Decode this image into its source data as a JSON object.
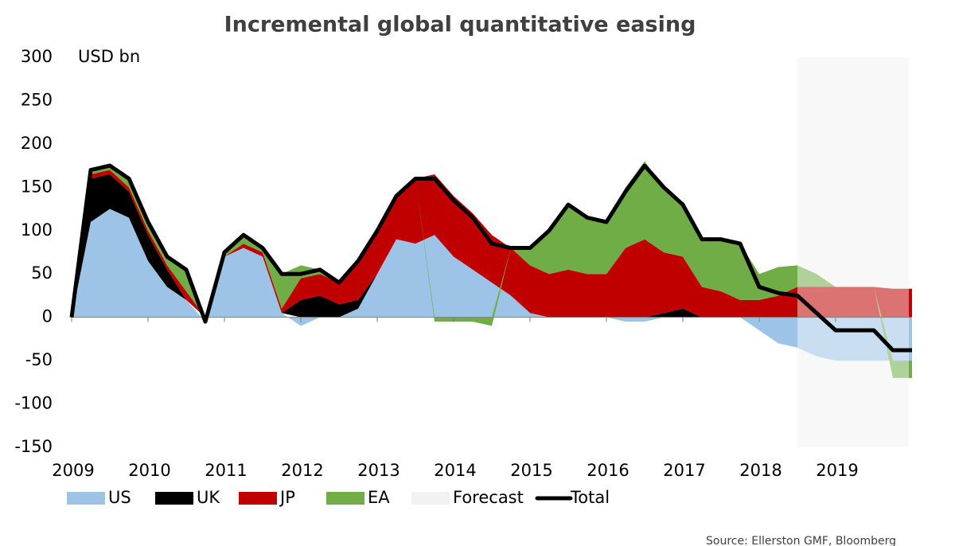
{
  "chart_data": {
    "type": "stacked_area",
    "title": "Incremental global quantitative easing",
    "y_label": "USD bn",
    "source": "Source: Ellerston GMF, Bloomberg",
    "x": [
      2009,
      2009.25,
      2009.5,
      2009.75,
      2010,
      2010.25,
      2010.5,
      2010.75,
      2011,
      2011.25,
      2011.5,
      2011.75,
      2012,
      2012.25,
      2012.5,
      2012.75,
      2013,
      2013.25,
      2013.5,
      2013.75,
      2014,
      2014.25,
      2014.5,
      2014.75,
      2015,
      2015.25,
      2015.5,
      2015.75,
      2016,
      2016.25,
      2016.5,
      2016.75,
      2017,
      2017.25,
      2017.5,
      2017.75,
      2018,
      2018.25,
      2018.5,
      2018.75,
      2019,
      2019.25,
      2019.5,
      2019.75,
      2020
    ],
    "series": [
      {
        "name": "US",
        "color": "#9dc3e6",
        "values": [
          0,
          110,
          125,
          115,
          65,
          35,
          20,
          -5,
          70,
          80,
          70,
          5,
          -10,
          0,
          0,
          10,
          50,
          90,
          85,
          95,
          70,
          55,
          40,
          25,
          5,
          0,
          0,
          0,
          0,
          -5,
          -5,
          0,
          0,
          0,
          0,
          0,
          -15,
          -30,
          -35,
          -45,
          -50,
          -50,
          -50,
          -50,
          -50
        ]
      },
      {
        "name": "UK",
        "color": "#000000",
        "values": [
          0,
          50,
          40,
          30,
          30,
          20,
          0,
          0,
          0,
          0,
          0,
          0,
          20,
          25,
          15,
          10,
          0,
          0,
          0,
          0,
          0,
          0,
          0,
          0,
          0,
          0,
          0,
          0,
          0,
          0,
          0,
          5,
          10,
          0,
          0,
          0,
          0,
          0,
          0,
          0,
          0,
          0,
          0,
          0,
          0
        ]
      },
      {
        "name": "JP",
        "color": "#c00000",
        "values": [
          0,
          5,
          5,
          5,
          5,
          5,
          10,
          0,
          0,
          5,
          5,
          5,
          25,
          25,
          25,
          45,
          50,
          50,
          75,
          70,
          70,
          65,
          55,
          55,
          55,
          50,
          55,
          50,
          50,
          80,
          90,
          70,
          60,
          35,
          30,
          20,
          20,
          25,
          35,
          35,
          35,
          35,
          35,
          33,
          33
        ]
      },
      {
        "name": "EA",
        "color": "#70ad47",
        "values": [
          0,
          5,
          5,
          10,
          10,
          10,
          25,
          0,
          5,
          10,
          5,
          40,
          15,
          5,
          0,
          0,
          0,
          0,
          0,
          -5,
          -5,
          -5,
          -10,
          0,
          20,
          50,
          75,
          65,
          60,
          70,
          90,
          75,
          60,
          55,
          60,
          65,
          30,
          33,
          25,
          15,
          0,
          0,
          0,
          -20,
          -20
        ]
      },
      {
        "name": "Total",
        "color": "#000000",
        "values": [
          0,
          170,
          175,
          160,
          110,
          70,
          55,
          -5,
          75,
          95,
          80,
          50,
          50,
          55,
          40,
          65,
          100,
          140,
          160,
          160,
          135,
          115,
          85,
          80,
          80,
          100,
          130,
          115,
          110,
          145,
          175,
          150,
          130,
          90,
          90,
          85,
          35,
          28,
          25,
          5,
          -15,
          -15,
          -15,
          -38,
          -38
        ]
      }
    ],
    "forecast": {
      "name": "Forecast",
      "color": "#f2f2f2",
      "x": [
        2018.5,
        2020
      ]
    },
    "xlim": [
      2009,
      2020
    ],
    "xticks": [
      2009,
      2010,
      2011,
      2012,
      2013,
      2014,
      2015,
      2016,
      2017,
      2018,
      2019
    ],
    "ylim": [
      -150,
      300
    ],
    "yticks": [
      -150,
      -100,
      -50,
      0,
      50,
      100,
      150,
      200,
      250,
      300
    ]
  }
}
